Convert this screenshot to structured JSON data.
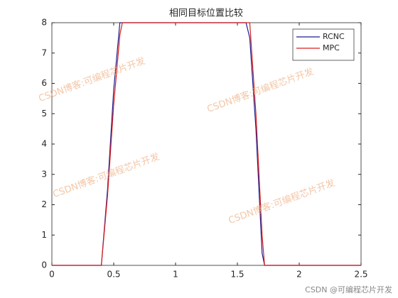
{
  "chart_data": {
    "type": "line",
    "title": "相同目标位置比较",
    "x": [
      0,
      0.4,
      0.45,
      0.5,
      0.55,
      0.57,
      1.57,
      1.6,
      1.65,
      1.7,
      1.72,
      2.5
    ],
    "series": [
      {
        "name": "RCNC",
        "color": "#1f1f8f",
        "values": [
          0,
          0,
          2.5,
          5.8,
          8,
          8,
          8,
          7.5,
          4.5,
          0.4,
          0,
          0
        ]
      },
      {
        "name": "MPC",
        "color": "#d92020",
        "values": [
          0,
          0,
          2.3,
          5.3,
          7.6,
          8,
          8,
          8,
          5,
          1,
          0,
          0
        ]
      }
    ],
    "xlim": [
      0,
      2.5
    ],
    "xticks": [
      0,
      0.5,
      1,
      1.5,
      2,
      2.5
    ],
    "ylim": [
      0,
      8
    ],
    "yticks": [
      0,
      1,
      2,
      3,
      4,
      5,
      6,
      7,
      8
    ],
    "legend": "northeast",
    "watermark": "CSDN博客:可编程芯片开发",
    "credit": "CSDN @可编程芯片开发"
  }
}
